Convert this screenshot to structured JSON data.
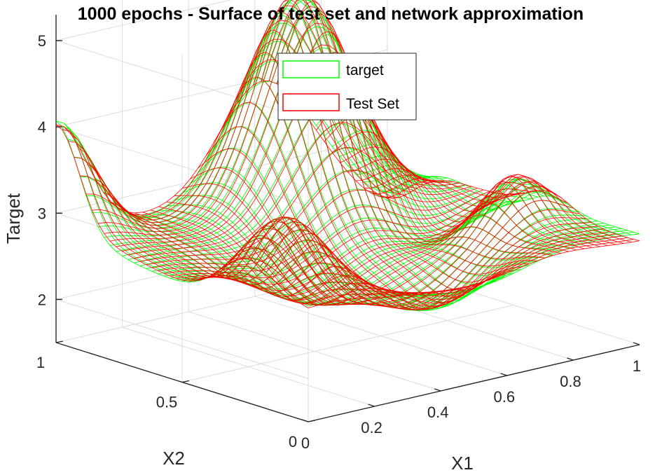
{
  "colors": {
    "target": "#00ff00",
    "test_set": "#ff0000",
    "axis": "#262626",
    "grid": "#dcdcdc"
  },
  "chart_data": {
    "type": "surface",
    "title": "1000 epochs - Surface of test set and network approximation",
    "xlabel": "X1",
    "ylabel": "X2",
    "zlabel": "Target",
    "xlim": [
      0,
      1
    ],
    "ylim": [
      0,
      1
    ],
    "zlim": [
      1.5,
      5.3
    ],
    "x_ticks": [
      {
        "value": 0,
        "label": "0"
      },
      {
        "value": 0.2,
        "label": "0.2"
      },
      {
        "value": 0.4,
        "label": "0.4"
      },
      {
        "value": 0.6,
        "label": "0.6"
      },
      {
        "value": 0.8,
        "label": "0.8"
      },
      {
        "value": 1,
        "label": "1"
      }
    ],
    "y_ticks": [
      {
        "value": 0,
        "label": "0"
      },
      {
        "value": 0.5,
        "label": "0.5"
      },
      {
        "value": 1,
        "label": "1"
      }
    ],
    "z_ticks": [
      {
        "value": 2,
        "label": "2"
      },
      {
        "value": 3,
        "label": "3"
      },
      {
        "value": 4,
        "label": "4"
      },
      {
        "value": 5,
        "label": "5"
      }
    ],
    "grid": true,
    "legend": {
      "placement": "top-center",
      "entries": [
        {
          "name": "target",
          "color": "#00ff00"
        },
        {
          "name": "Test Set",
          "color": "#ff0000"
        }
      ]
    },
    "series": [
      {
        "name": "target",
        "style": "mesh",
        "color": "#00ff00",
        "grid_size": 42
      },
      {
        "name": "Test Set",
        "style": "mesh",
        "color": "#ff0000",
        "grid_size": 42
      }
    ]
  }
}
